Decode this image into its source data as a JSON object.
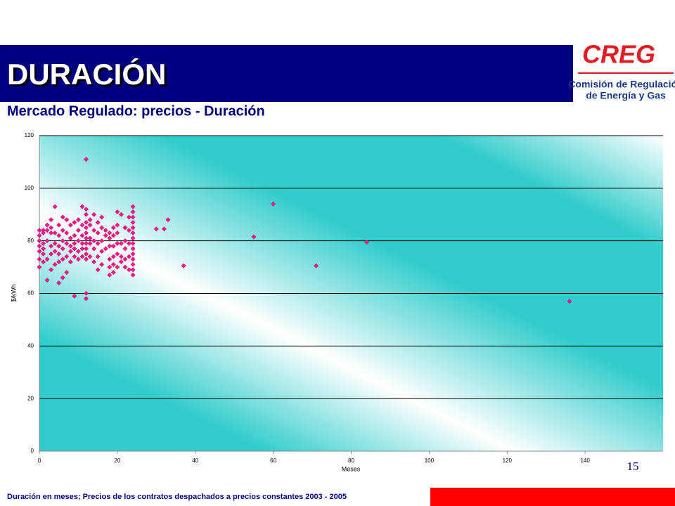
{
  "header": {
    "title": "DURACIÓN",
    "logo_mark": "CREG",
    "logo_line1": "Comisión de Regulación",
    "logo_line2": "de Energía y Gas"
  },
  "chart_data": {
    "type": "scatter",
    "title": "Mercado Regulado: precios - Duración",
    "x_label": "Meses",
    "y_label": "$/kWh",
    "color": "#ff1a8c",
    "x": [
      0,
      0,
      0,
      0,
      0,
      0,
      0,
      1,
      1,
      1,
      1,
      1,
      1,
      2,
      2,
      2,
      2,
      2,
      3,
      3,
      3,
      3,
      3,
      3,
      4,
      4,
      4,
      4,
      4,
      5,
      5,
      5,
      5,
      5,
      5,
      6,
      6,
      6,
      6,
      6,
      6,
      7,
      7,
      7,
      7,
      7,
      8,
      8,
      8,
      8,
      8,
      9,
      9,
      9,
      9,
      9,
      9,
      10,
      10,
      10,
      10,
      10,
      11,
      11,
      11,
      11,
      11,
      11,
      12,
      12,
      12,
      12,
      12,
      12,
      12,
      12,
      12,
      12,
      12,
      12,
      12,
      13,
      13,
      13,
      13,
      13,
      14,
      14,
      14,
      14,
      14,
      15,
      15,
      15,
      15,
      15,
      16,
      16,
      16,
      16,
      16,
      17,
      17,
      17,
      18,
      18,
      18,
      18,
      18,
      18,
      19,
      19,
      19,
      19,
      19,
      19,
      20,
      20,
      20,
      20,
      20,
      20,
      21,
      21,
      21,
      21,
      22,
      22,
      22,
      22,
      22,
      23,
      23,
      23,
      23,
      23,
      24,
      24,
      24,
      24,
      24,
      24,
      24,
      24,
      24,
      24,
      24,
      24,
      24,
      24,
      30,
      32,
      33,
      37,
      55,
      60,
      71,
      84,
      136
    ],
    "values": [
      70,
      73,
      76,
      78,
      80,
      82,
      84,
      72,
      75,
      79,
      83,
      84,
      77,
      65,
      73,
      80,
      84,
      86,
      69,
      75,
      78,
      83,
      85,
      88,
      71,
      76,
      79,
      83,
      93,
      64,
      72,
      75,
      78,
      82,
      86,
      66,
      73,
      77,
      80,
      84,
      89,
      68,
      74,
      79,
      83,
      88,
      72,
      76,
      78,
      81,
      86,
      74,
      77,
      79,
      82,
      87,
      59,
      73,
      76,
      80,
      84,
      88,
      74,
      77,
      79,
      82,
      86,
      93,
      58,
      60,
      73,
      75,
      77,
      79,
      81,
      83,
      85,
      87,
      90,
      92,
      111,
      74,
      79,
      81,
      86,
      88,
      72,
      77,
      80,
      84,
      90,
      69,
      74,
      79,
      83,
      87,
      71,
      76,
      80,
      85,
      89,
      77,
      82,
      84,
      67,
      70,
      73,
      78,
      81,
      83,
      68,
      71,
      74,
      78,
      82,
      85,
      70,
      75,
      79,
      83,
      86,
      91,
      72,
      74,
      79,
      90,
      70,
      73,
      77,
      80,
      85,
      69,
      74,
      79,
      84,
      89,
      67,
      69,
      71,
      73,
      75,
      77,
      79,
      81,
      83,
      85,
      87,
      89,
      91,
      93,
      84.5,
      84.5,
      88,
      70.5,
      81.5,
      94,
      70.5,
      79.5,
      57
    ],
    "xlim": [
      0,
      160
    ],
    "xticks": [
      0,
      20,
      40,
      60,
      80,
      100,
      120,
      140
    ],
    "ylim": [
      0,
      120
    ],
    "yticks": [
      0,
      20,
      40,
      60,
      80,
      100,
      120
    ],
    "grid": true
  },
  "page_number": "15",
  "footer": "Duración en meses; Precios de los contratos despachados a precios constantes 2003 - 2005"
}
